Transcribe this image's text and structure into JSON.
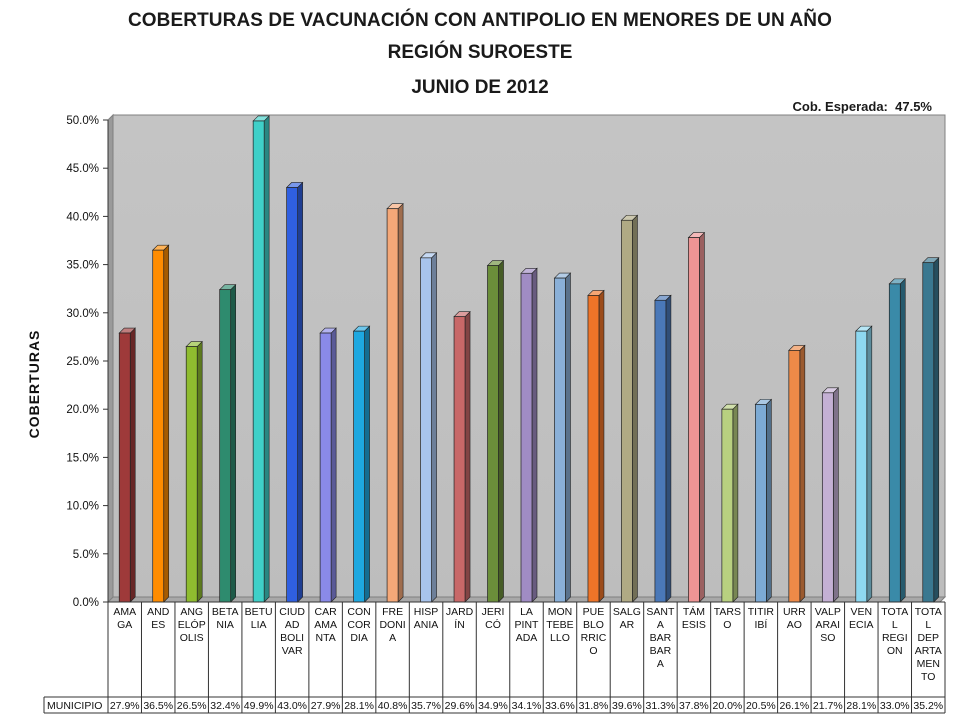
{
  "header": {
    "title_line1": "COBERTURAS DE VACUNACIÓN CON ANTIPOLIO EN MENORES DE UN AÑO",
    "title_line2": "REGIÓN SUROESTE",
    "title_line3": "JUNIO DE 2012",
    "expected_label": "Cob. Esperada:",
    "expected_value": "47.5%"
  },
  "chart_data": {
    "type": "bar",
    "title": "COBERTURAS DE VACUNACIÓN CON ANTIPOLIO EN MENORES DE UN AÑO",
    "ylabel": "COBERTURAS",
    "ylim": [
      0,
      50
    ],
    "y_ticks": [
      "0.0%",
      "5.0%",
      "10.0%",
      "15.0%",
      "20.0%",
      "25.0%",
      "30.0%",
      "35.0%",
      "40.0%",
      "45.0%",
      "50.0%"
    ],
    "grid": false,
    "table_row_label": "MUNICIPIO",
    "categories": [
      [
        "AMA",
        "GA"
      ],
      [
        "AND",
        "ES"
      ],
      [
        "ANG",
        "ELÓP",
        "OLIS"
      ],
      [
        "BETA",
        "NIA"
      ],
      [
        "BETU",
        "LIA"
      ],
      [
        "CIUD",
        "AD",
        "BOLI",
        "VAR"
      ],
      [
        "CAR",
        "AMA",
        "NTA"
      ],
      [
        "CON",
        "COR",
        "DIA"
      ],
      [
        "FRE",
        "DONI",
        "A"
      ],
      [
        "HISP",
        "ANIA"
      ],
      [
        "JARD",
        "ÍN"
      ],
      [
        "JERI",
        "CÓ"
      ],
      [
        "LA",
        "PINT",
        "ADA"
      ],
      [
        "MON",
        "TEBE",
        "LLO"
      ],
      [
        "PUE",
        "BLO",
        "RRIC",
        "O"
      ],
      [
        "SALG",
        "AR"
      ],
      [
        "SANT",
        "A",
        "BAR",
        "BAR",
        "A"
      ],
      [
        "TÁM",
        "ESIS"
      ],
      [
        "TARS",
        "O"
      ],
      [
        "TITIR",
        "IBÍ"
      ],
      [
        "URR",
        "AO"
      ],
      [
        "VALP",
        "ARAI",
        "SO"
      ],
      [
        "VEN",
        "ECIA"
      ],
      [
        "TOTA",
        "L",
        "REGI",
        "ON"
      ],
      [
        "TOTA",
        "L",
        "DEP",
        "ARTA",
        "MEN",
        "TO"
      ]
    ],
    "values": [
      27.9,
      36.5,
      26.5,
      32.4,
      49.9,
      43.0,
      27.9,
      28.1,
      40.8,
      35.7,
      29.6,
      34.9,
      34.1,
      33.6,
      31.8,
      39.6,
      31.3,
      37.8,
      20.0,
      20.5,
      26.1,
      21.7,
      28.1,
      33.0,
      35.2
    ],
    "value_labels": [
      "27.9%",
      "36.5%",
      "26.5%",
      "32.4%",
      "49.9%",
      "43.0%",
      "27.9%",
      "28.1%",
      "40.8%",
      "35.7%",
      "29.6%",
      "34.9%",
      "34.1%",
      "33.6%",
      "31.8%",
      "39.6%",
      "31.3%",
      "37.8%",
      "20.0%",
      "20.5%",
      "26.1%",
      "21.7%",
      "28.1%",
      "33.0%",
      "35.2%"
    ],
    "colors": [
      "#9e3a3a",
      "#ff8c00",
      "#8fbc2f",
      "#2e8b6e",
      "#3fd0c8",
      "#2f5fe0",
      "#8a8ae8",
      "#1ea8e0",
      "#f5a878",
      "#a8c4ec",
      "#c86868",
      "#6b8e3a",
      "#a08cc4",
      "#8ab0d8",
      "#ee7428",
      "#b0aa84",
      "#4a78b8",
      "#ee9494",
      "#b8d080",
      "#7caad4",
      "#ee8a48",
      "#c4b0d4",
      "#8ed8f0",
      "#3a8aa8",
      "#3a7890"
    ]
  }
}
